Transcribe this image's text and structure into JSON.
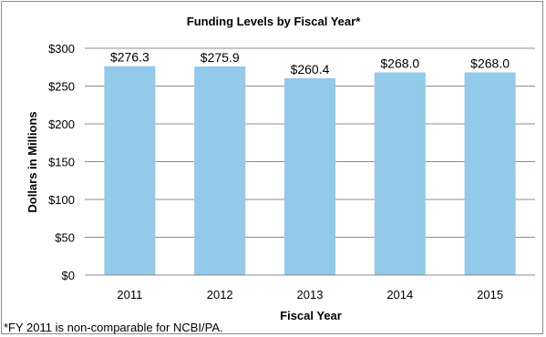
{
  "chart_data": {
    "type": "bar",
    "title": "Funding Levels by Fiscal Year*",
    "xlabel": "Fiscal Year",
    "ylabel": "Dollars in Millions",
    "categories": [
      "2011",
      "2012",
      "2013",
      "2014",
      "2015"
    ],
    "values": [
      276.3,
      275.9,
      260.4,
      268.0,
      268.0
    ],
    "data_labels": [
      "$276.3",
      "$275.9",
      "$260.4",
      "$268.0",
      "$268.0"
    ],
    "ylim": [
      0,
      300
    ],
    "y_ticks": [
      0,
      50,
      100,
      150,
      200,
      250,
      300
    ],
    "y_tick_labels": [
      "$0",
      "$50",
      "$100",
      "$150",
      "$200",
      "$250",
      "$300"
    ],
    "grid": true,
    "legend": "none",
    "bar_color": "#93c9e9",
    "gridline_color": "#8c8c8c"
  },
  "footnote": "*FY 2011 is non-comparable for NCBI/PA."
}
